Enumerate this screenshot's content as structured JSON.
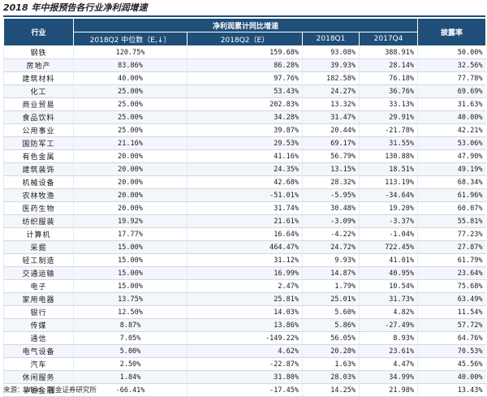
{
  "title": "2018 年中报预告各行业净利润增速",
  "header": {
    "industry": "行业",
    "group": "净利润累计同比增速",
    "pct": "披露率",
    "columns": [
      "2018Q2 中位数（E,↓）",
      "2018Q2（E）",
      "2018Q1",
      "2017Q4"
    ]
  },
  "rows": [
    {
      "industry": "钢铁",
      "median": "120.75%",
      "q2": "159.68%",
      "q1": "93.08%",
      "q4": "388.91%",
      "pct": "50.00%"
    },
    {
      "industry": "房地产",
      "median": "83.86%",
      "q2": "86.28%",
      "q1": "39.93%",
      "q4": "28.14%",
      "pct": "32.56%"
    },
    {
      "industry": "建筑材料",
      "median": "40.00%",
      "q2": "97.76%",
      "q1": "182.58%",
      "q4": "76.18%",
      "pct": "77.78%"
    },
    {
      "industry": "化工",
      "median": "25.00%",
      "q2": "53.43%",
      "q1": "24.27%",
      "q4": "36.76%",
      "pct": "69.69%"
    },
    {
      "industry": "商业贸易",
      "median": "25.00%",
      "q2": "202.83%",
      "q1": "13.32%",
      "q4": "33.13%",
      "pct": "31.63%"
    },
    {
      "industry": "食品饮料",
      "median": "25.00%",
      "q2": "34.28%",
      "q1": "31.47%",
      "q4": "29.91%",
      "pct": "40.00%"
    },
    {
      "industry": "公用事业",
      "median": "25.00%",
      "q2": "39.87%",
      "q1": "20.44%",
      "q4": "-21.78%",
      "pct": "42.21%"
    },
    {
      "industry": "国防军工",
      "median": "21.16%",
      "q2": "29.53%",
      "q1": "69.17%",
      "q4": "31.55%",
      "pct": "53.06%"
    },
    {
      "industry": "有色金属",
      "median": "20.00%",
      "q2": "41.16%",
      "q1": "56.79%",
      "q4": "130.88%",
      "pct": "47.90%"
    },
    {
      "industry": "建筑装饰",
      "median": "20.00%",
      "q2": "24.35%",
      "q1": "13.15%",
      "q4": "18.51%",
      "pct": "49.19%"
    },
    {
      "industry": "机械设备",
      "median": "20.00%",
      "q2": "42.68%",
      "q1": "28.32%",
      "q4": "113.19%",
      "pct": "68.34%"
    },
    {
      "industry": "农林牧渔",
      "median": "20.00%",
      "q2": "-51.01%",
      "q1": "-5.95%",
      "q4": "-34.64%",
      "pct": "61.96%"
    },
    {
      "industry": "医药生物",
      "median": "20.00%",
      "q2": "31.74%",
      "q1": "30.48%",
      "q4": "19.20%",
      "pct": "60.07%"
    },
    {
      "industry": "纺织服装",
      "median": "19.92%",
      "q2": "21.61%",
      "q1": "-3.09%",
      "q4": "-3.37%",
      "pct": "55.81%"
    },
    {
      "industry": "计算机",
      "median": "17.77%",
      "q2": "16.64%",
      "q1": "-4.22%",
      "q4": "-1.04%",
      "pct": "77.23%"
    },
    {
      "industry": "采掘",
      "median": "15.00%",
      "q2": "464.47%",
      "q1": "24.72%",
      "q4": "722.45%",
      "pct": "27.87%"
    },
    {
      "industry": "轻工制造",
      "median": "15.00%",
      "q2": "31.12%",
      "q1": "9.93%",
      "q4": "41.01%",
      "pct": "61.79%"
    },
    {
      "industry": "交通运输",
      "median": "15.00%",
      "q2": "16.99%",
      "q1": "14.87%",
      "q4": "40.95%",
      "pct": "23.64%"
    },
    {
      "industry": "电子",
      "median": "15.00%",
      "q2": "2.47%",
      "q1": "1.79%",
      "q4": "10.54%",
      "pct": "75.68%"
    },
    {
      "industry": "家用电器",
      "median": "13.75%",
      "q2": "25.81%",
      "q1": "25.01%",
      "q4": "31.73%",
      "pct": "63.49%"
    },
    {
      "industry": "银行",
      "median": "12.50%",
      "q2": "14.03%",
      "q1": "5.60%",
      "q4": "4.82%",
      "pct": "11.54%"
    },
    {
      "industry": "传媒",
      "median": "8.87%",
      "q2": "13.86%",
      "q1": "5.86%",
      "q4": "-27.49%",
      "pct": "57.72%"
    },
    {
      "industry": "通信",
      "median": "7.05%",
      "q2": "-149.22%",
      "q1": "56.05%",
      "q4": "8.93%",
      "pct": "64.76%"
    },
    {
      "industry": "电气设备",
      "median": "5.00%",
      "q2": "4.62%",
      "q1": "20.28%",
      "q4": "23.61%",
      "pct": "70.53%"
    },
    {
      "industry": "汽车",
      "median": "2.50%",
      "q2": "-22.87%",
      "q1": "1.63%",
      "q4": "4.47%",
      "pct": "45.56%"
    },
    {
      "industry": "休闲服务",
      "median": "1.84%",
      "q2": "31.80%",
      "q1": "28.03%",
      "q4": "34.99%",
      "pct": "40.00%"
    },
    {
      "industry": "非银金融",
      "median": "-66.41%",
      "q2": "-17.45%",
      "q1": "14.25%",
      "q4": "21.98%",
      "pct": "13.43%"
    }
  ],
  "source": "来源：Wind、国金证券研究所",
  "colors": {
    "header_bg": "#1f4e79",
    "header_text": "#ffffff",
    "row_stripe": "#f3f6fa"
  }
}
